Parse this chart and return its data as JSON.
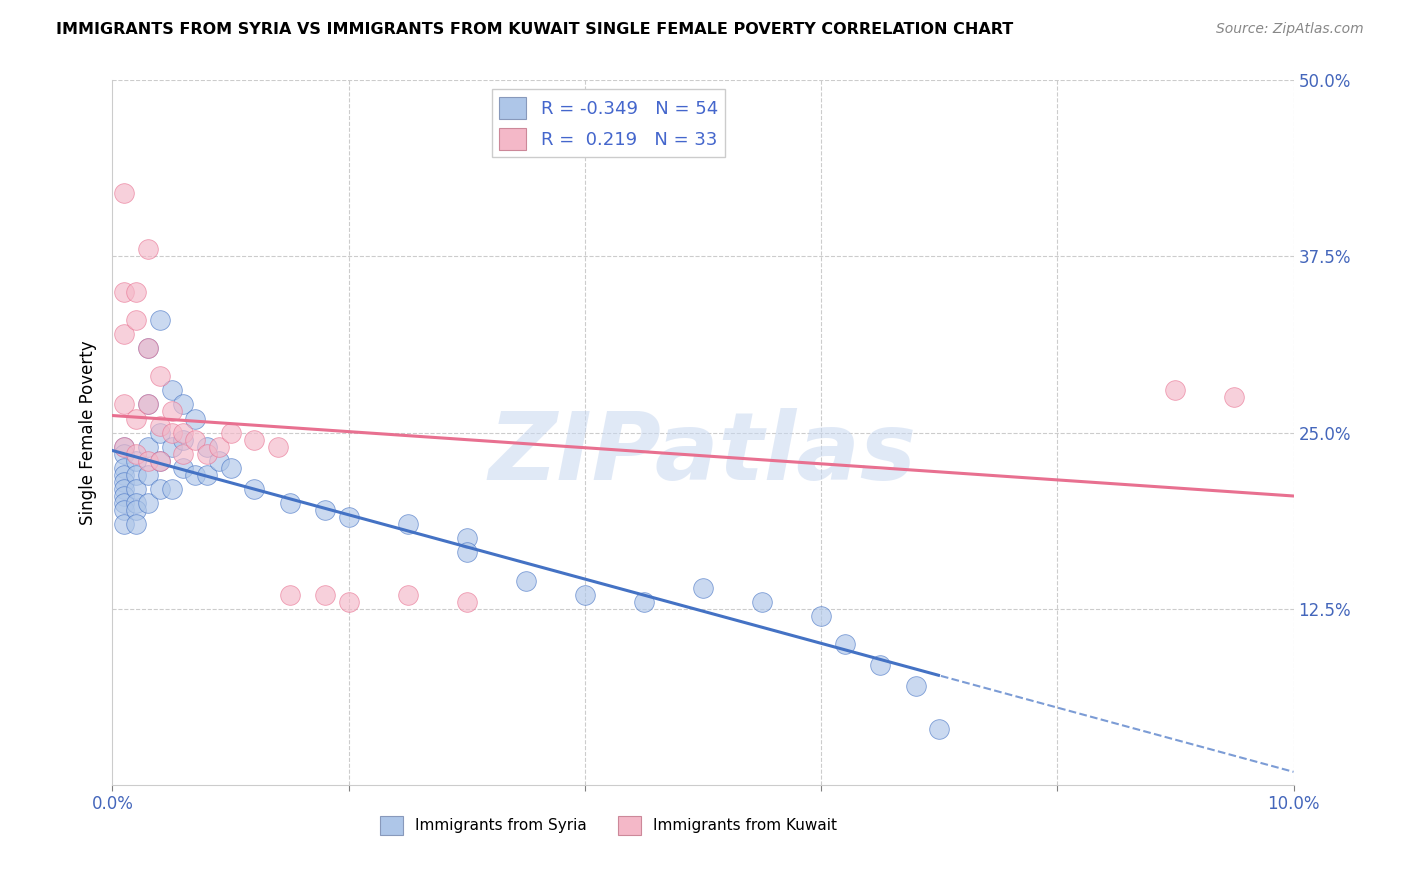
{
  "title": "IMMIGRANTS FROM SYRIA VS IMMIGRANTS FROM KUWAIT SINGLE FEMALE POVERTY CORRELATION CHART",
  "source": "Source: ZipAtlas.com",
  "ylabel_left": "Single Female Poverty",
  "legend_label_syria": "Immigrants from Syria",
  "legend_label_kuwait": "Immigrants from Kuwait",
  "r_syria": -0.349,
  "n_syria": 54,
  "r_kuwait": 0.219,
  "n_kuwait": 33,
  "xlim": [
    0.0,
    0.1
  ],
  "ylim": [
    0.0,
    0.5
  ],
  "color_syria": "#aec6e8",
  "color_kuwait": "#f4b8c8",
  "line_color_syria": "#4472c4",
  "line_color_kuwait": "#e87090",
  "watermark": "ZIPatlas",
  "syria_x": [
    0.001,
    0.001,
    0.001,
    0.001,
    0.001,
    0.001,
    0.001,
    0.001,
    0.001,
    0.001,
    0.002,
    0.002,
    0.002,
    0.002,
    0.002,
    0.002,
    0.003,
    0.003,
    0.003,
    0.003,
    0.003,
    0.004,
    0.004,
    0.004,
    0.004,
    0.005,
    0.005,
    0.005,
    0.006,
    0.006,
    0.006,
    0.007,
    0.007,
    0.008,
    0.008,
    0.009,
    0.01,
    0.012,
    0.015,
    0.018,
    0.02,
    0.025,
    0.03,
    0.03,
    0.035,
    0.04,
    0.045,
    0.05,
    0.055,
    0.06,
    0.062,
    0.065,
    0.068,
    0.07
  ],
  "syria_y": [
    0.24,
    0.235,
    0.225,
    0.22,
    0.215,
    0.21,
    0.205,
    0.2,
    0.195,
    0.185,
    0.23,
    0.22,
    0.21,
    0.2,
    0.195,
    0.185,
    0.31,
    0.27,
    0.24,
    0.22,
    0.2,
    0.33,
    0.25,
    0.23,
    0.21,
    0.28,
    0.24,
    0.21,
    0.27,
    0.245,
    0.225,
    0.26,
    0.22,
    0.24,
    0.22,
    0.23,
    0.225,
    0.21,
    0.2,
    0.195,
    0.19,
    0.185,
    0.175,
    0.165,
    0.145,
    0.135,
    0.13,
    0.14,
    0.13,
    0.12,
    0.1,
    0.085,
    0.07,
    0.04
  ],
  "kuwait_x": [
    0.001,
    0.001,
    0.001,
    0.001,
    0.001,
    0.002,
    0.002,
    0.002,
    0.002,
    0.003,
    0.003,
    0.003,
    0.003,
    0.004,
    0.004,
    0.004,
    0.005,
    0.005,
    0.006,
    0.006,
    0.007,
    0.008,
    0.009,
    0.01,
    0.012,
    0.014,
    0.015,
    0.018,
    0.02,
    0.025,
    0.03,
    0.09,
    0.095
  ],
  "kuwait_y": [
    0.42,
    0.35,
    0.32,
    0.27,
    0.24,
    0.35,
    0.33,
    0.26,
    0.235,
    0.38,
    0.31,
    0.27,
    0.23,
    0.29,
    0.255,
    0.23,
    0.265,
    0.25,
    0.25,
    0.235,
    0.245,
    0.235,
    0.24,
    0.25,
    0.245,
    0.24,
    0.135,
    0.135,
    0.13,
    0.135,
    0.13,
    0.28,
    0.275
  ]
}
